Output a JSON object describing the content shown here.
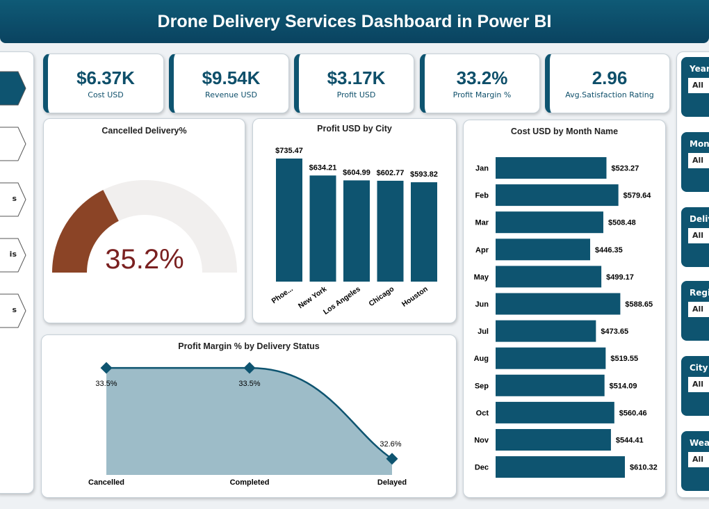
{
  "header": {
    "title": "Drone Delivery Services Dashboard in Power BI"
  },
  "nav": {
    "items": [
      {
        "label": "",
        "active": true
      },
      {
        "label": ""
      },
      {
        "label": "s"
      },
      {
        "label": "is"
      },
      {
        "label": "s"
      }
    ]
  },
  "kpis": [
    {
      "value": "$6.37K",
      "label": "Cost USD"
    },
    {
      "value": "$9.54K",
      "label": "Revenue USD"
    },
    {
      "value": "$3.17K",
      "label": "Profit USD"
    },
    {
      "value": "33.2%",
      "label": "Profit Margin %"
    },
    {
      "value": "2.96",
      "label": "Avg.Satisfaction Rating"
    }
  ],
  "colors": {
    "primary": "#0e5470",
    "gauge_fill": "#8b4426",
    "gauge_track": "#f1efee",
    "gauge_text": "#7a2020",
    "area": "#9dbcc8"
  },
  "slicers": [
    {
      "label": "Year",
      "value": "All"
    },
    {
      "label": "Mont",
      "value": "All"
    },
    {
      "label": "Deliv",
      "value": "All"
    },
    {
      "label": "Regi",
      "value": "All"
    },
    {
      "label": "City",
      "value": "All"
    },
    {
      "label": "Wea",
      "value": "All"
    }
  ],
  "chart_data": [
    {
      "type": "gauge",
      "title": "Cancelled Delivery%",
      "value": 35.2,
      "value_label": "35.2%",
      "range": [
        0,
        100
      ]
    },
    {
      "type": "bar",
      "title": "Profit USD by City",
      "categories": [
        "Phoe...",
        "New York",
        "Los Angeles",
        "Chicago",
        "Houston"
      ],
      "values": [
        735.47,
        634.21,
        604.99,
        602.77,
        593.82
      ],
      "labels": [
        "$735.47",
        "$634.21",
        "$604.99",
        "$602.77",
        "$593.82"
      ],
      "ylim": [
        0,
        735.47
      ]
    },
    {
      "type": "bar",
      "orientation": "horizontal",
      "title": "Cost USD by Month Name",
      "categories": [
        "Jan",
        "Feb",
        "Mar",
        "Apr",
        "May",
        "Jun",
        "Jul",
        "Aug",
        "Sep",
        "Oct",
        "Nov",
        "Dec"
      ],
      "values": [
        523.27,
        579.64,
        508.48,
        446.35,
        499.17,
        588.65,
        473.65,
        519.55,
        514.09,
        560.46,
        544.41,
        610.32
      ],
      "labels": [
        "$523.27",
        "$579.64",
        "$508.48",
        "$446.35",
        "$499.17",
        "$588.65",
        "$473.65",
        "$519.55",
        "$514.09",
        "$560.46",
        "$544.41",
        "$610.32"
      ],
      "xlim": [
        0,
        610.32
      ]
    },
    {
      "type": "area",
      "title": "Profit Margin % by Delivery Status",
      "categories": [
        "Cancelled",
        "Completed",
        "Delayed"
      ],
      "values": [
        33.5,
        33.5,
        32.6
      ],
      "labels": [
        "33.5%",
        "33.5%",
        "32.6%"
      ],
      "ylim": [
        32.44,
        33.59
      ]
    }
  ]
}
